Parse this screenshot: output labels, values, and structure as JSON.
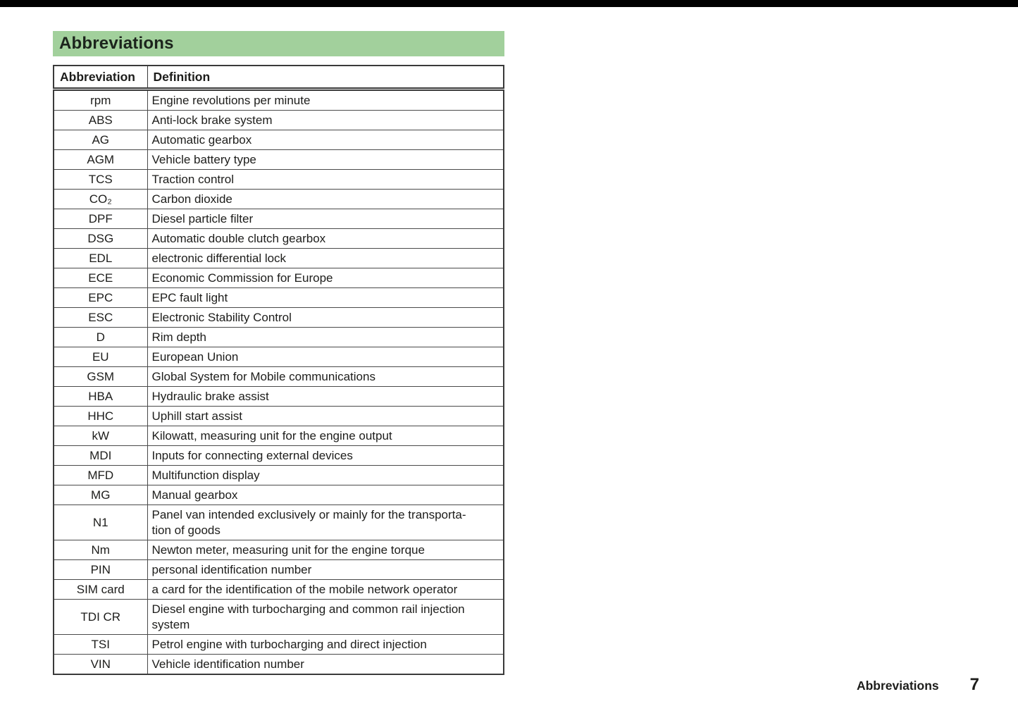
{
  "page": {
    "background_color": "#ffffff",
    "top_bar_color": "#000000",
    "accent_green": "#a2d09c",
    "text_color": "#1d1d1b"
  },
  "header": {
    "title": "Abbreviations"
  },
  "table": {
    "columns": [
      "Abbreviation",
      "Definition"
    ],
    "rows": [
      {
        "abbr": "rpm",
        "definition": "Engine revolutions per minute"
      },
      {
        "abbr": "ABS",
        "definition": "Anti-lock brake system"
      },
      {
        "abbr": "AG",
        "definition": "Automatic gearbox"
      },
      {
        "abbr": "AGM",
        "definition": "Vehicle battery type"
      },
      {
        "abbr": "TCS",
        "definition": "Traction control"
      },
      {
        "abbr": "CO₂",
        "definition": "Carbon dioxide"
      },
      {
        "abbr": "DPF",
        "definition": "Diesel particle filter"
      },
      {
        "abbr": "DSG",
        "definition": "Automatic double clutch gearbox"
      },
      {
        "abbr": "EDL",
        "definition": "electronic differential lock"
      },
      {
        "abbr": "ECE",
        "definition": "Economic Commission for Europe"
      },
      {
        "abbr": "EPC",
        "definition": "EPC fault light"
      },
      {
        "abbr": "ESC",
        "definition": "Electronic Stability Control"
      },
      {
        "abbr": "D",
        "definition": "Rim depth"
      },
      {
        "abbr": "EU",
        "definition": "European Union"
      },
      {
        "abbr": "GSM",
        "definition": "Global System for Mobile communications"
      },
      {
        "abbr": "HBA",
        "definition": "Hydraulic brake assist"
      },
      {
        "abbr": "HHC",
        "definition": "Uphill start assist"
      },
      {
        "abbr": "kW",
        "definition": "Kilowatt, measuring unit for the engine output"
      },
      {
        "abbr": "MDI",
        "definition": "Inputs for connecting external devices"
      },
      {
        "abbr": "MFD",
        "definition": "Multifunction display"
      },
      {
        "abbr": "MG",
        "definition": "Manual gearbox"
      },
      {
        "abbr": "N1",
        "definition": "Panel van intended exclusively or mainly for the transporta-\ntion of goods"
      },
      {
        "abbr": "Nm",
        "definition": "Newton meter, measuring unit for the engine torque"
      },
      {
        "abbr": "PIN",
        "definition": "personal identification number"
      },
      {
        "abbr": "SIM card",
        "definition": "a card for the identification of the mobile network operator"
      },
      {
        "abbr": "TDI CR",
        "definition": "Diesel engine with turbocharging and common rail injection\nsystem"
      },
      {
        "abbr": "TSI",
        "definition": "Petrol engine with turbocharging and direct injection"
      },
      {
        "abbr": "VIN",
        "definition": "Vehicle identification number"
      }
    ]
  },
  "footer": {
    "section": "Abbreviations",
    "page_number": "7"
  }
}
